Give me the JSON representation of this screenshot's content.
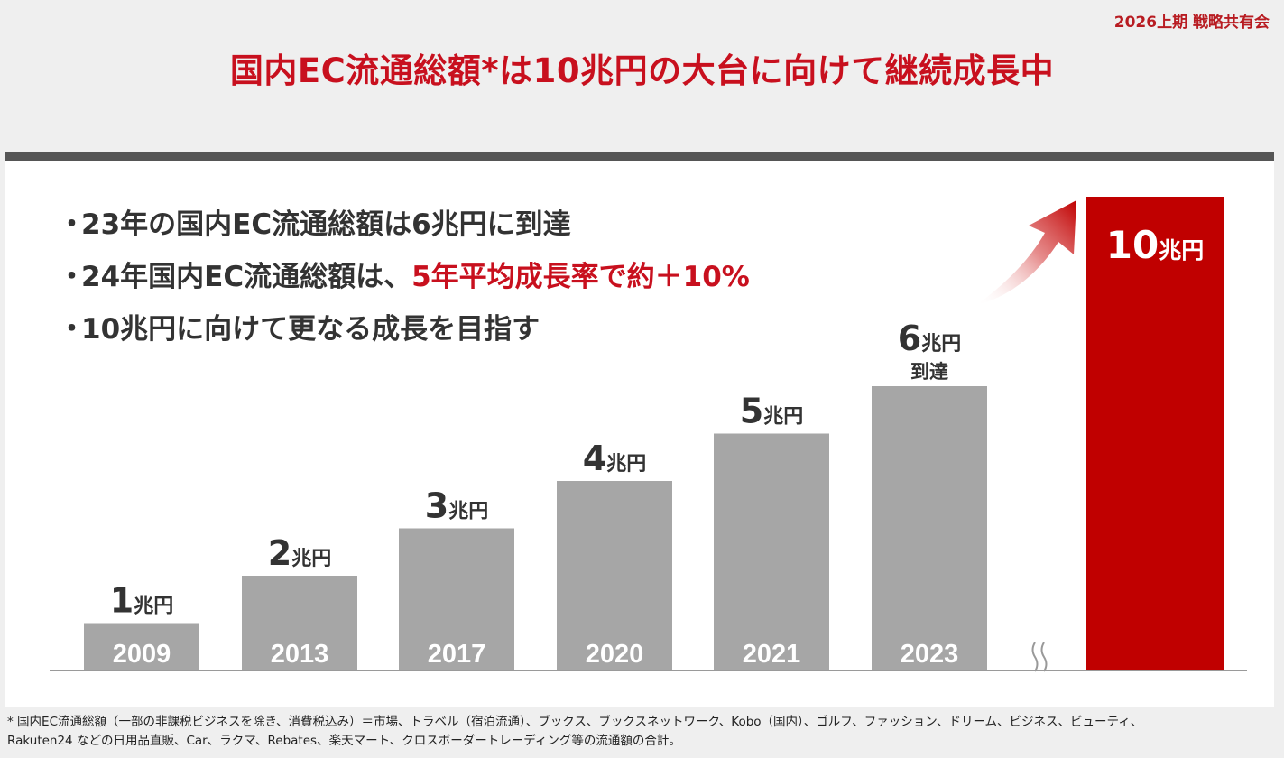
{
  "header_label": "2026上期 戦略共有会",
  "title": "国内EC流通総額*は10兆円の大台に向けて継続成長中",
  "bullets": [
    {
      "text": "23年の国内EC流通総額は6兆円に到達",
      "highlight": ""
    },
    {
      "text": "24年国内EC流通総額は、",
      "highlight": "5年平均成長率で約＋10%"
    },
    {
      "text": "10兆円に向けて更なる成長を目指す",
      "highlight": ""
    }
  ],
  "chart_data": {
    "type": "bar",
    "categories": [
      "2009",
      "2013",
      "2017",
      "2020",
      "2021",
      "2023",
      ""
    ],
    "values": [
      1,
      2,
      3,
      4,
      5,
      6,
      10
    ],
    "value_labels": [
      "1兆円",
      "2兆円",
      "3兆円",
      "4兆円",
      "5兆円",
      "6兆円",
      "10兆円"
    ],
    "annotations": [
      "",
      "",
      "",
      "",
      "",
      "到達",
      ""
    ],
    "unit": "兆円",
    "bar_colors": [
      "#a6a6a6",
      "#a6a6a6",
      "#a6a6a6",
      "#a6a6a6",
      "#a6a6a6",
      "#a6a6a6",
      "#c00000"
    ],
    "axis_break": true,
    "growth_arrow": true,
    "grid": false,
    "ylim": [
      0,
      10
    ]
  },
  "footnote": "* 国内EC流通総額（一部の非課税ビジネスを除き、消費税込み）＝市場、トラベル（宿泊流通）、ブックス、ブックスネットワーク、Kobo（国内）、ゴルフ、ファッション、ドリーム、ビジネス、ビューティ、Rakuten24 などの日用品直販、Car、ラクマ、Rebates、楽天マート、クロスボーダートレーディング等の流通額の合計。"
}
